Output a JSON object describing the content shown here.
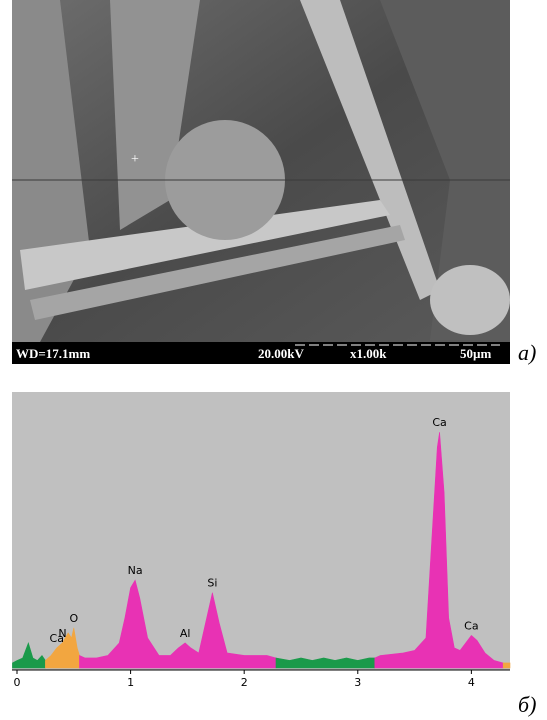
{
  "micrograph": {
    "wd": "WD=17.1mm",
    "voltage": "20.00kV",
    "magnification": "x1.00k",
    "scale": "50µm",
    "panel_label": "а)"
  },
  "chart_data": {
    "type": "spectrum",
    "panel_label": "б)",
    "xlim": [
      -0.044,
      4.34
    ],
    "ylim": [
      0,
      110
    ],
    "xticks": [
      0,
      1,
      2,
      3,
      4
    ],
    "regions": [
      {
        "color": "#1a9a4a",
        "x": [
          -0.04,
          0.0,
          0.05,
          0.1,
          0.14,
          0.18,
          0.22,
          0.25
        ],
        "values": [
          2,
          3,
          4,
          10,
          4,
          3,
          5,
          3
        ]
      },
      {
        "color": "#f2a640",
        "x": [
          0.25,
          0.3,
          0.35,
          0.4,
          0.45,
          0.48,
          0.5,
          0.53,
          0.55
        ],
        "values": [
          3,
          5,
          8,
          10,
          14,
          12,
          16,
          8,
          5
        ]
      },
      {
        "color": "#e832b4",
        "x": [
          0.55,
          0.6,
          0.7,
          0.8,
          0.9,
          0.95,
          1.0,
          1.04,
          1.08,
          1.15,
          1.25,
          1.35,
          1.42,
          1.48,
          1.53,
          1.6,
          1.66,
          1.72,
          1.78,
          1.85,
          2.0,
          2.1,
          2.2,
          2.28
        ],
        "values": [
          5,
          4,
          4,
          5,
          10,
          20,
          32,
          35,
          28,
          12,
          5,
          5,
          8,
          10,
          8,
          6,
          18,
          30,
          18,
          6,
          5,
          5,
          5,
          4
        ]
      },
      {
        "color": "#1a9a4a",
        "x": [
          2.28,
          2.4,
          2.5,
          2.6,
          2.7,
          2.8,
          2.9,
          3.0,
          3.1,
          3.15
        ],
        "values": [
          4,
          3,
          4,
          3,
          4,
          3,
          4,
          3,
          4,
          4
        ]
      },
      {
        "color": "#e832b4",
        "x": [
          3.15,
          3.2,
          3.4,
          3.5,
          3.6,
          3.65,
          3.7,
          3.72,
          3.76,
          3.8,
          3.85,
          3.9,
          3.95,
          4.0,
          4.05,
          4.12,
          4.2,
          4.28
        ],
        "values": [
          4,
          5,
          6,
          7,
          12,
          50,
          88,
          94,
          70,
          20,
          8,
          7,
          10,
          13,
          11,
          6,
          3,
          2
        ]
      },
      {
        "color": "#f2a640",
        "x": [
          4.28,
          4.31,
          4.34
        ],
        "values": [
          2,
          2,
          2
        ]
      }
    ],
    "peaks": [
      {
        "label": "Ca",
        "x": 0.35
      },
      {
        "label": "N",
        "x": 0.4
      },
      {
        "label": "O",
        "x": 0.5
      },
      {
        "label": "Na",
        "x": 1.04
      },
      {
        "label": "Al",
        "x": 1.48
      },
      {
        "label": "Si",
        "x": 1.72
      },
      {
        "label": "Ca",
        "x": 3.72
      },
      {
        "label": "Ca",
        "x": 4.0
      }
    ]
  }
}
